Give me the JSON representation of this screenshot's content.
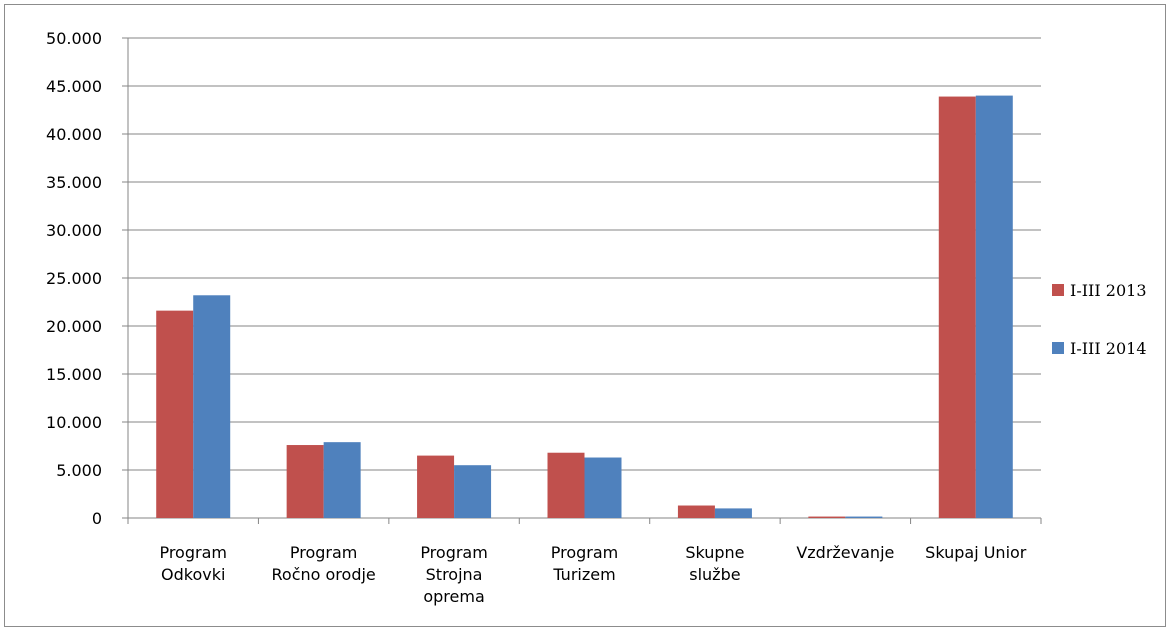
{
  "chart_data": {
    "type": "bar",
    "categories": [
      [
        "Program",
        "Odkovki"
      ],
      [
        "Program",
        "Ročno orodje"
      ],
      [
        "Program",
        "Strojna",
        "oprema"
      ],
      [
        "Program",
        "Turizem"
      ],
      [
        "Skupne",
        "službe"
      ],
      [
        "Vzdrževanje"
      ],
      [
        "Skupaj Unior"
      ]
    ],
    "series": [
      {
        "name": "I-III 2013",
        "color": "#c0504d",
        "values": [
          21600,
          7600,
          6500,
          6800,
          1300,
          150,
          43900
        ]
      },
      {
        "name": "I-III 2014",
        "color": "#4f81bd",
        "values": [
          23200,
          7900,
          5500,
          6300,
          1000,
          150,
          44000
        ]
      }
    ],
    "yticks": [
      "0",
      "5.000",
      "10.000",
      "15.000",
      "20.000",
      "25.000",
      "30.000",
      "35.000",
      "40.000",
      "45.000",
      "50.000"
    ],
    "ylim": [
      0,
      50000
    ],
    "grid": true,
    "legend_position": "right"
  }
}
